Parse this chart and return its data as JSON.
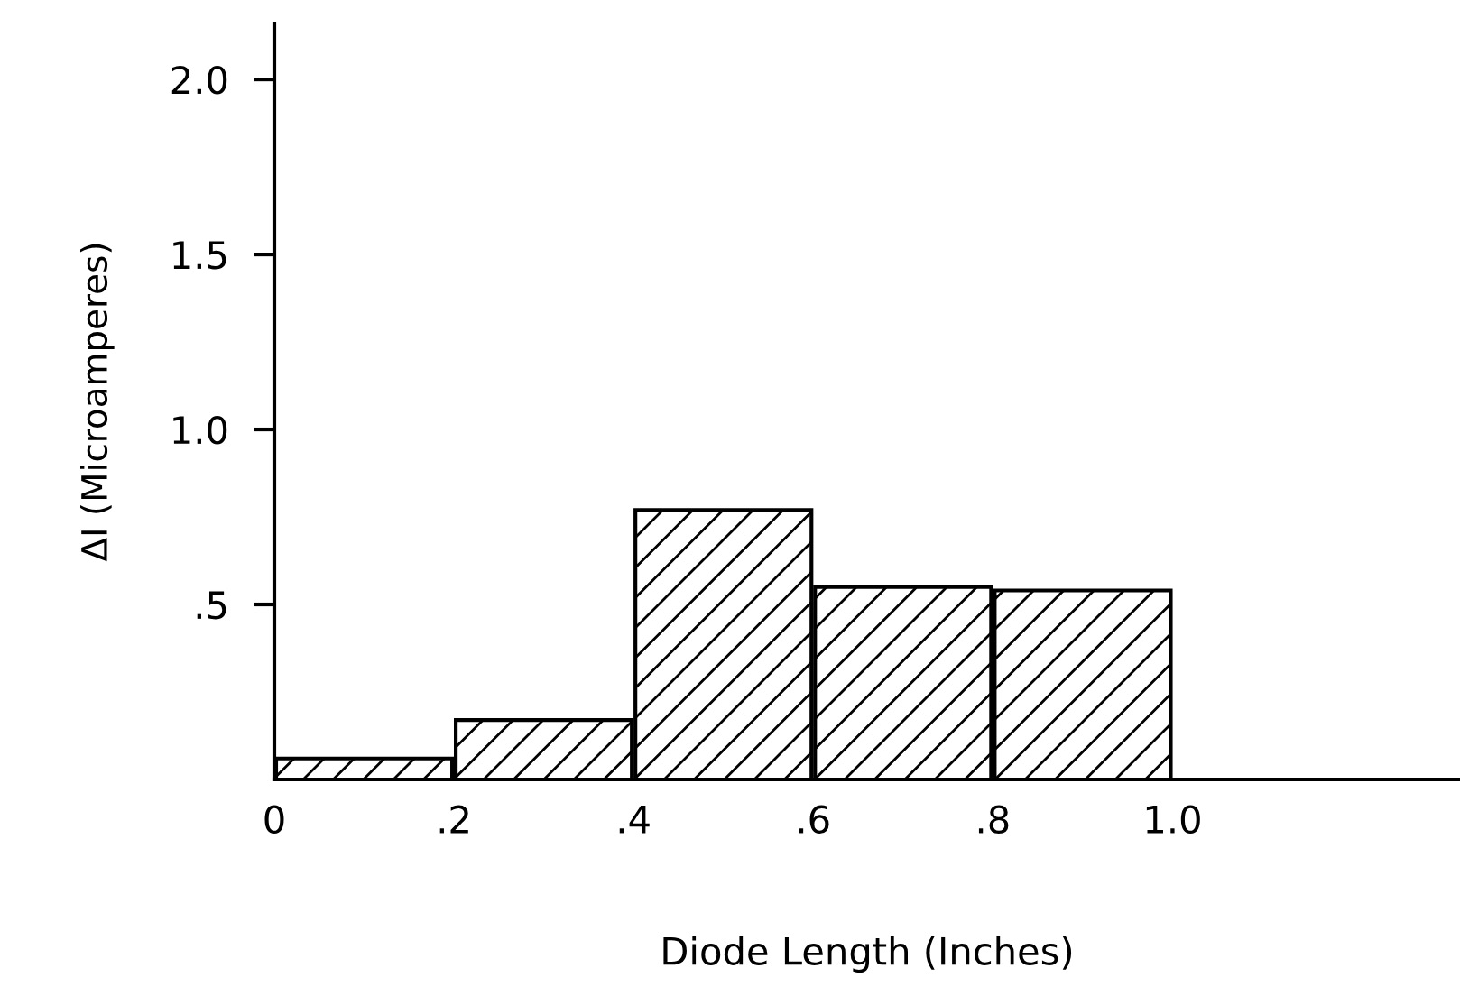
{
  "chart_data": {
    "type": "histogram",
    "xlabel": "Diode Length (Inches)",
    "ylabel": "ΔI (Microamperes)",
    "bins": [
      0,
      0.2,
      0.4,
      0.6,
      0.8,
      1.0
    ],
    "values": [
      0.06,
      0.17,
      0.77,
      0.55,
      0.54
    ],
    "color": "#000000",
    "xlim": [
      0,
      1.32
    ],
    "ylim": [
      0,
      2.16
    ],
    "xticks": [
      0,
      {
        "value": 0.2,
        "label": ".2"
      },
      {
        "value": 0.4,
        "label": ".4"
      },
      {
        "value": 0.6,
        "label": ".6"
      },
      {
        "value": 0.8,
        "label": ".8"
      },
      {
        "value": 1.0,
        "label": "1.0"
      }
    ],
    "yticks": [
      {
        "value": 0.5,
        "label": ".5"
      },
      {
        "value": 1.0,
        "label": "1.0"
      },
      {
        "value": 1.5,
        "label": "1.5"
      },
      {
        "value": 2.0,
        "label": "2.0"
      }
    ],
    "grid": false
  }
}
